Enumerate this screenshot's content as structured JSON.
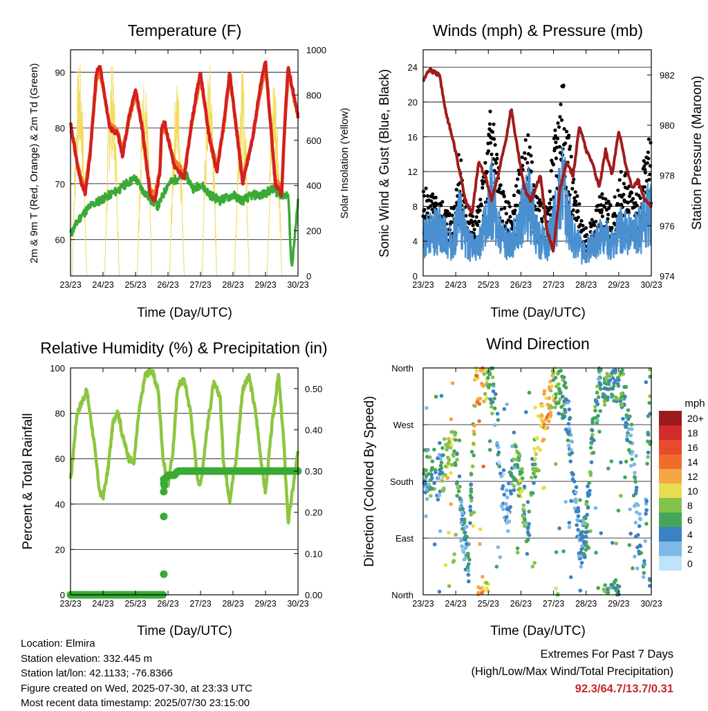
{
  "footer": {
    "location": "Location: Elmira",
    "elevation": "Station elevation: 332.445 m",
    "latlon": "Station lat/lon: 42.1133; -76.8366",
    "created": "Figure created on Wed, 2025-07-30, at 23:33 UTC",
    "latest": "Most recent data timestamp: 2025/07/30 23:15:00"
  },
  "extremes": {
    "title": "Extremes For Past 7 Days",
    "subtitle": "(High/Low/Max Wind/Total Precipitation)",
    "values": "92.3/64.7/13.7/0.31",
    "color": "#c62828"
  },
  "chart_data": [
    {
      "id": "temperature",
      "type": "line",
      "title": "Temperature (F)",
      "xlabel": "Time (Day/UTC)",
      "ylabel": "2m & 9m T (Red, Orange) & 2m Td (Green)",
      "y2label": "Solar Insolation (Yellow)",
      "x_ticks": [
        "23/23",
        "24/23",
        "25/23",
        "26/23",
        "27/23",
        "28/23",
        "29/23",
        "30/23"
      ],
      "xlim": [
        0,
        7
      ],
      "ylim": [
        53.5,
        94
      ],
      "y_ticks": [
        60,
        70,
        80,
        90
      ],
      "y2lim": [
        0,
        1000
      ],
      "y2_ticks": [
        0,
        200,
        400,
        600,
        800,
        1000
      ],
      "grid": true,
      "series": [
        {
          "name": "2m T",
          "color": "#d32020",
          "axis": "left",
          "x": [
            0,
            0.25,
            0.45,
            0.6,
            0.8,
            0.9,
            1.0,
            1.2,
            1.45,
            1.6,
            1.8,
            2.0,
            2.2,
            2.45,
            2.6,
            2.75,
            2.8,
            2.9,
            3.2,
            3.35,
            3.5,
            3.7,
            3.9,
            4.0,
            4.25,
            4.5,
            4.7,
            4.9,
            5.1,
            5.3,
            5.6,
            5.8,
            6.0,
            6.3,
            6.5,
            6.6,
            6.7,
            7.0
          ],
          "y": [
            81,
            72,
            68,
            75,
            90,
            91,
            88,
            80,
            79,
            75,
            82,
            87,
            80,
            68,
            67,
            72,
            80,
            81,
            73,
            72,
            71,
            80,
            87,
            90,
            79,
            72,
            80,
            90,
            80,
            70,
            78,
            86,
            92,
            70,
            68,
            82,
            91,
            82
          ]
        },
        {
          "name": "9m T",
          "color": "#f07c20",
          "axis": "left",
          "x": [
            0,
            0.25,
            0.45,
            0.6,
            0.8,
            0.9,
            1.0,
            1.2,
            1.45,
            1.6,
            1.8,
            2.0,
            2.2,
            2.45,
            2.6,
            2.75,
            2.8,
            2.9,
            3.2,
            3.35,
            3.5,
            3.7,
            3.9,
            4.0,
            4.25,
            4.5,
            4.7,
            4.9,
            5.1,
            5.3,
            5.6,
            5.8,
            6.0,
            6.3,
            6.5,
            6.6,
            6.7,
            7.0
          ],
          "y": [
            80,
            72.5,
            69,
            75.5,
            89,
            90,
            87.5,
            80.5,
            79.5,
            76,
            81.5,
            86,
            80.5,
            69,
            68,
            72.5,
            79,
            80,
            74,
            73,
            72,
            79.5,
            86,
            89,
            79.5,
            73,
            79.5,
            89,
            80.5,
            71,
            78,
            85,
            91,
            71,
            69,
            81,
            90,
            82
          ]
        },
        {
          "name": "2m Td",
          "color": "#3aaa35",
          "axis": "left",
          "x": [
            0,
            0.3,
            0.6,
            0.9,
            1.2,
            1.5,
            1.7,
            2.0,
            2.2,
            2.5,
            2.7,
            3.0,
            3.3,
            3.5,
            3.8,
            4.0,
            4.3,
            4.6,
            5.0,
            5.3,
            5.6,
            5.9,
            6.2,
            6.5,
            6.7,
            6.8,
            6.9,
            7.0
          ],
          "y": [
            61,
            64,
            66,
            67,
            68,
            69,
            70,
            71,
            69,
            67,
            66,
            70,
            71,
            72,
            69,
            70,
            68,
            67,
            68,
            67,
            68,
            68,
            69,
            68,
            68,
            55,
            60,
            67
          ]
        },
        {
          "name": "Solar Insolation",
          "color": "#f3dc5e",
          "axis": "right",
          "days": [
            0,
            1,
            2,
            3,
            4,
            5,
            6
          ],
          "peaks": [
            960,
            950,
            900,
            880,
            950,
            930,
            920
          ]
        }
      ]
    },
    {
      "id": "winds",
      "type": "scatter",
      "title": "Winds (mph) & Pressure (mb)",
      "xlabel": "Time (Day/UTC)",
      "ylabel": "Sonic Wind & Gust (Blue, Black)",
      "y2label": "Station Pressure (Maroon)",
      "x_ticks": [
        "23/23",
        "24/23",
        "25/23",
        "26/23",
        "27/23",
        "28/23",
        "29/23",
        "30/23"
      ],
      "xlim": [
        0,
        7
      ],
      "ylim": [
        0,
        26
      ],
      "y_ticks": [
        0,
        4,
        8,
        12,
        16,
        20,
        24
      ],
      "y2lim": [
        974,
        983
      ],
      "y2_ticks": [
        974,
        976,
        978,
        980,
        982
      ],
      "grid": true,
      "series": [
        {
          "name": "Sonic Wind",
          "color": "#4a90d0",
          "x": [
            0,
            0.5,
            0.9,
            1.1,
            1.3,
            1.6,
            1.9,
            2.1,
            2.4,
            2.7,
            2.9,
            3.2,
            3.5,
            3.8,
            4.0,
            4.3,
            4.6,
            4.9,
            5.2,
            5.5,
            5.8,
            6.1,
            6.4,
            6.7,
            7.0
          ],
          "y": [
            5,
            6,
            4,
            8,
            5,
            3,
            6,
            10,
            5,
            4,
            6,
            10,
            5,
            4,
            7,
            11,
            5,
            3,
            4,
            5,
            4,
            6,
            5,
            6,
            9
          ]
        },
        {
          "name": "Gust",
          "color": "#000000",
          "x": [
            0,
            0.5,
            0.9,
            1.1,
            1.3,
            1.6,
            1.9,
            2.1,
            2.4,
            2.7,
            2.9,
            3.2,
            3.5,
            3.8,
            4.0,
            4.3,
            4.6,
            4.9,
            5.2,
            5.5,
            5.8,
            6.1,
            6.4,
            6.7,
            7.0
          ],
          "y": [
            8,
            7,
            6,
            12,
            7,
            5,
            10,
            17,
            8,
            6,
            9,
            13,
            7,
            6,
            12,
            20,
            9,
            5,
            5,
            8,
            6,
            10,
            8,
            9,
            14
          ]
        },
        {
          "name": "Station Pressure",
          "color": "#a01c1c",
          "axis": "right",
          "x": [
            0,
            0.2,
            0.5,
            0.7,
            0.9,
            1.1,
            1.3,
            1.5,
            1.7,
            1.9,
            2.1,
            2.3,
            2.55,
            2.7,
            2.9,
            3.1,
            3.3,
            3.6,
            3.8,
            4.0,
            4.2,
            4.4,
            4.6,
            4.8,
            5.0,
            5.2,
            5.4,
            5.6,
            5.8,
            6.0,
            6.2,
            6.4,
            6.6,
            6.8,
            7.0
          ],
          "y": [
            981.8,
            982.2,
            982.0,
            980.5,
            979.5,
            978.3,
            977.0,
            976.5,
            978.5,
            978.0,
            977.0,
            978.0,
            979.5,
            980.7,
            979.0,
            977.5,
            977.0,
            978.0,
            975.8,
            975.0,
            977.5,
            978.5,
            978.0,
            980.0,
            979.0,
            978.5,
            977.5,
            979.0,
            978.0,
            979.8,
            978.5,
            977.5,
            977.8,
            977.0,
            976.8
          ]
        }
      ]
    },
    {
      "id": "humidity",
      "type": "line",
      "title": "Relative Humidity (%) & Precipitation (in)",
      "xlabel": "Time (Day/UTC)",
      "ylabel": "Percent & Total Rainfall",
      "x_ticks": [
        "23/23",
        "24/23",
        "25/23",
        "26/23",
        "27/23",
        "28/23",
        "29/23",
        "30/23"
      ],
      "xlim": [
        0,
        7
      ],
      "ylim": [
        0,
        100
      ],
      "y_ticks": [
        0,
        20,
        40,
        60,
        80,
        100
      ],
      "y2lim": [
        0,
        0.55
      ],
      "y2_ticks": [
        "0.00",
        "0.10",
        "0.20",
        "0.30",
        "0.40",
        "0.50"
      ],
      "grid": true,
      "series": [
        {
          "name": "Relative Humidity",
          "color": "#8cc63f",
          "x": [
            0,
            0.2,
            0.5,
            0.7,
            0.9,
            1.0,
            1.15,
            1.3,
            1.45,
            1.6,
            1.8,
            1.95,
            2.1,
            2.3,
            2.5,
            2.7,
            2.85,
            3.0,
            3.15,
            3.3,
            3.5,
            3.7,
            3.9,
            4.0,
            4.2,
            4.4,
            4.6,
            4.7,
            4.9,
            5.1,
            5.3,
            5.5,
            5.7,
            5.9,
            6.0,
            6.2,
            6.4,
            6.55,
            6.7,
            7.0
          ],
          "y": [
            50,
            80,
            90,
            70,
            45,
            43,
            55,
            75,
            82,
            70,
            60,
            58,
            80,
            97,
            99,
            90,
            60,
            48,
            63,
            92,
            95,
            80,
            52,
            48,
            73,
            93,
            88,
            60,
            42,
            60,
            91,
            96,
            80,
            55,
            45,
            75,
            97,
            70,
            32,
            63
          ]
        },
        {
          "name": "Total Precipitation",
          "color": "#3aaa35",
          "x": [
            0,
            1,
            2,
            2.85,
            2.86,
            2.87,
            2.88,
            2.89,
            2.9,
            3.0,
            3.2,
            3.3,
            3.5,
            4.0,
            5.0,
            6.0,
            7.0
          ],
          "y": [
            0,
            0,
            0,
            0,
            0.05,
            0.19,
            0.25,
            0.27,
            0.28,
            0.29,
            0.29,
            0.3,
            0.3,
            0.3,
            0.3,
            0.3,
            0.3
          ]
        }
      ]
    },
    {
      "id": "direction",
      "type": "scatter",
      "title": "Wind Direction",
      "xlabel": "Time (Day/UTC)",
      "ylabel": "Direction (Colored By Speed)",
      "x_ticks": [
        "23/23",
        "24/23",
        "25/23",
        "26/23",
        "27/23",
        "28/23",
        "29/23",
        "30/23"
      ],
      "xlim": [
        0,
        7
      ],
      "ylim": [
        0,
        360
      ],
      "y_ticks": [
        "North",
        "East",
        "South",
        "West",
        "North"
      ],
      "grid": true,
      "legend": {
        "title": "mph",
        "labels": [
          "20+",
          "18",
          "16",
          "14",
          "12",
          "10",
          "8",
          "6",
          "4",
          "2",
          "0"
        ],
        "colors": [
          "#9b1b1b",
          "#d22b2b",
          "#e84a2e",
          "#f06c2c",
          "#f7a444",
          "#e8dd4f",
          "#82c24b",
          "#45a55a",
          "#3a82c4",
          "#7db8e6",
          "#bfe3f7"
        ]
      },
      "series": [
        {
          "name": "direction",
          "x": [
            0.1,
            0.3,
            0.5,
            0.7,
            0.9,
            1.0,
            1.2,
            1.4,
            1.6,
            1.8,
            2.0,
            2.2,
            2.4,
            2.6,
            2.8,
            3.0,
            3.2,
            3.4,
            3.6,
            3.8,
            4.0,
            4.2,
            4.4,
            4.6,
            4.8,
            5.0,
            5.2,
            5.4,
            5.6,
            5.8,
            6.0,
            6.2,
            6.4,
            6.6,
            6.8,
            6.95
          ],
          "y": [
            190,
            200,
            185,
            215,
            230,
            220,
            100,
            60,
            320,
            350,
            340,
            300,
            180,
            140,
            200,
            180,
            100,
            210,
            260,
            300,
            340,
            320,
            300,
            200,
            80,
            100,
            250,
            330,
            340,
            350,
            340,
            300,
            230,
            100,
            50,
            350
          ],
          "speed": [
            4,
            6,
            3,
            9,
            10,
            7,
            3,
            4,
            11,
            12,
            8,
            4,
            3,
            2,
            5,
            8,
            4,
            7,
            11,
            12,
            9,
            6,
            4,
            3,
            3,
            5,
            6,
            4,
            7,
            5,
            6,
            5,
            4,
            3,
            4,
            6
          ]
        }
      ]
    }
  ]
}
